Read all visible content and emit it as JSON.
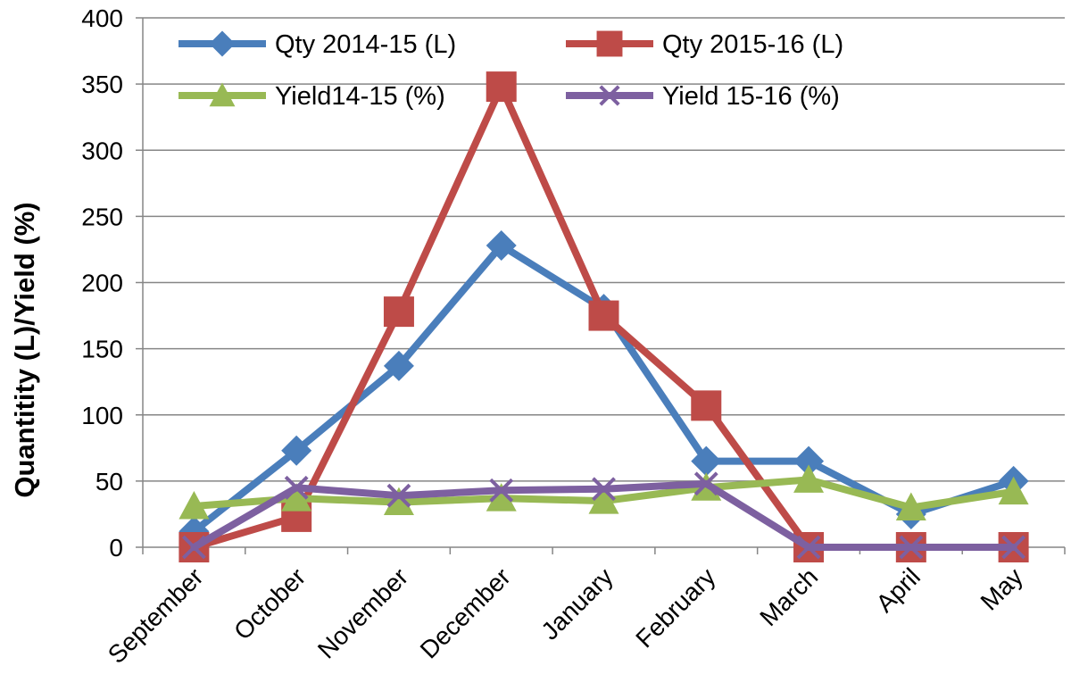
{
  "chart_data": {
    "type": "line",
    "categories": [
      "September",
      "October",
      "November",
      "December",
      "January",
      "February",
      "March",
      "April",
      "May"
    ],
    "series": [
      {
        "name": "Qty 2014-15 (L)",
        "color": "#4a7ebb",
        "marker": "diamond",
        "values": [
          12,
          73,
          137,
          228,
          180,
          65,
          65,
          25,
          50
        ]
      },
      {
        "name": "Qty 2015-16 (L)",
        "color": "#be4b48",
        "marker": "square",
        "values": [
          0,
          23,
          178,
          348,
          175,
          107,
          0,
          0,
          0
        ]
      },
      {
        "name": "Yield14-15 (%)",
        "color": "#98b954",
        "marker": "triangle",
        "values": [
          31,
          37,
          34,
          37,
          35,
          45,
          51,
          30,
          42
        ]
      },
      {
        "name": "Yield 15-16 (%)",
        "color": "#7d60a0",
        "marker": "x",
        "values": [
          0,
          45,
          39,
          43,
          44,
          48,
          0,
          0,
          0
        ]
      }
    ],
    "xlabel": "",
    "ylabel": "Quantitity (L)/Yield (%)",
    "ylim": [
      0,
      400
    ],
    "yticks": [
      "0",
      "50",
      "100",
      "150",
      "200",
      "250",
      "300",
      "350",
      "400"
    ],
    "grid": true,
    "legend": "top, two columns"
  }
}
